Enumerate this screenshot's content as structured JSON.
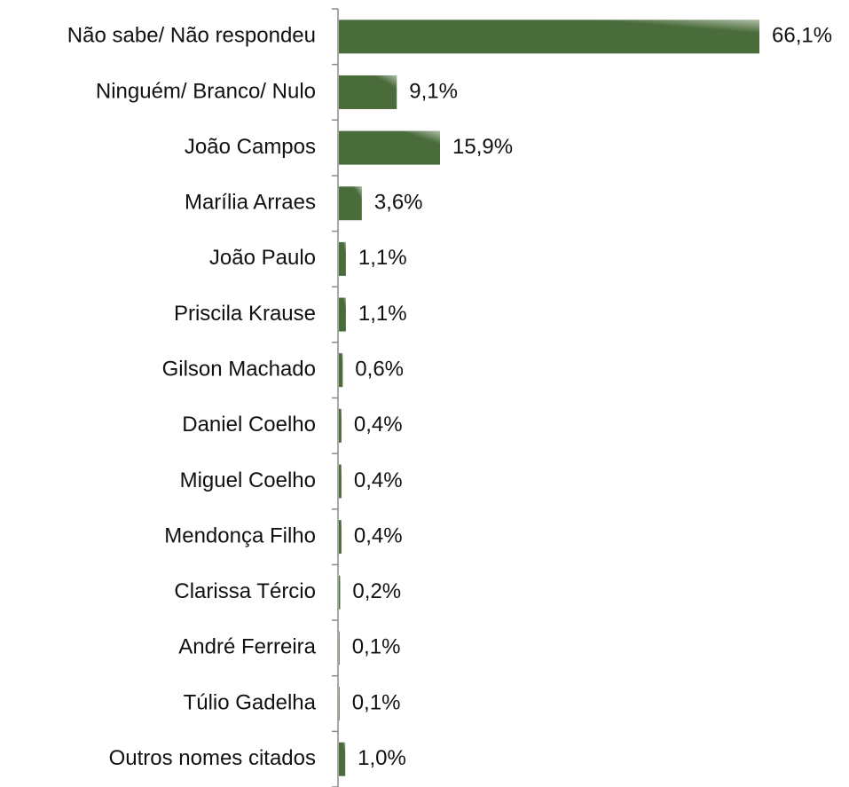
{
  "chart_data": {
    "type": "bar",
    "orientation": "horizontal",
    "categories": [
      "Não sabe/ Não respondeu",
      "Ninguém/ Branco/ Nulo",
      "João Campos",
      "Marília Arraes",
      "João Paulo",
      "Priscila Krause",
      "Gilson Machado",
      "Daniel Coelho",
      "Miguel Coelho",
      "Mendonça Filho",
      "Clarissa Tércio",
      "André Ferreira",
      "Túlio Gadelha",
      "Outros nomes citados"
    ],
    "values": [
      66.1,
      9.1,
      15.9,
      3.6,
      1.1,
      1.1,
      0.6,
      0.4,
      0.4,
      0.4,
      0.2,
      0.1,
      0.1,
      1.0
    ],
    "value_labels": [
      "66,1%",
      "9,1%",
      "15,9%",
      "3,6%",
      "1,1%",
      "1,1%",
      "0,6%",
      "0,4%",
      "0,4%",
      "0,4%",
      "0,2%",
      "0,1%",
      "0,1%",
      "1,0%"
    ],
    "color": "#4a6c3a"
  }
}
